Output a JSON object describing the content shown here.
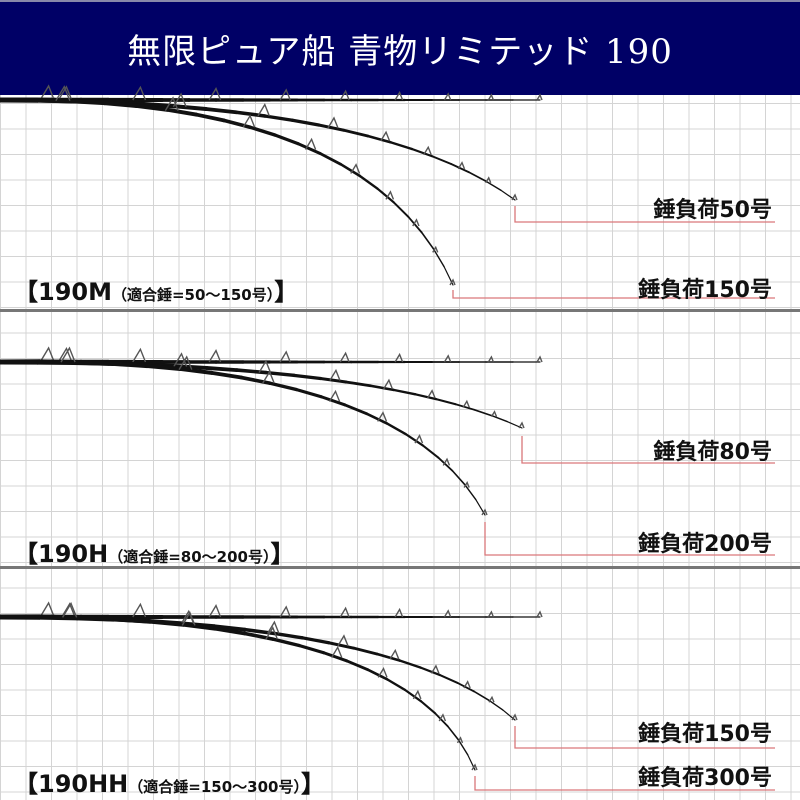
{
  "header": {
    "title": "無限ピュア船 青物リミテッド 190",
    "background": "#000066"
  },
  "colors": {
    "rod": "#111111",
    "leader_line": "#d9777a",
    "grid": "#d4d4d4"
  },
  "panels": [
    {
      "model": "【190M",
      "spec": "（適合錘=50〜150号）",
      "close": "】",
      "loads": [
        "錘負荷50号",
        "錘負荷150号"
      ]
    },
    {
      "model": "【190H",
      "spec": "（適合錘=80〜200号）",
      "close": "】",
      "loads": [
        "錘負荷80号",
        "錘負荷200号"
      ]
    },
    {
      "model": "【190HH",
      "spec": "（適合錘=150〜300号）",
      "close": "】",
      "loads": [
        "錘負荷150号",
        "錘負荷300号"
      ]
    }
  ]
}
